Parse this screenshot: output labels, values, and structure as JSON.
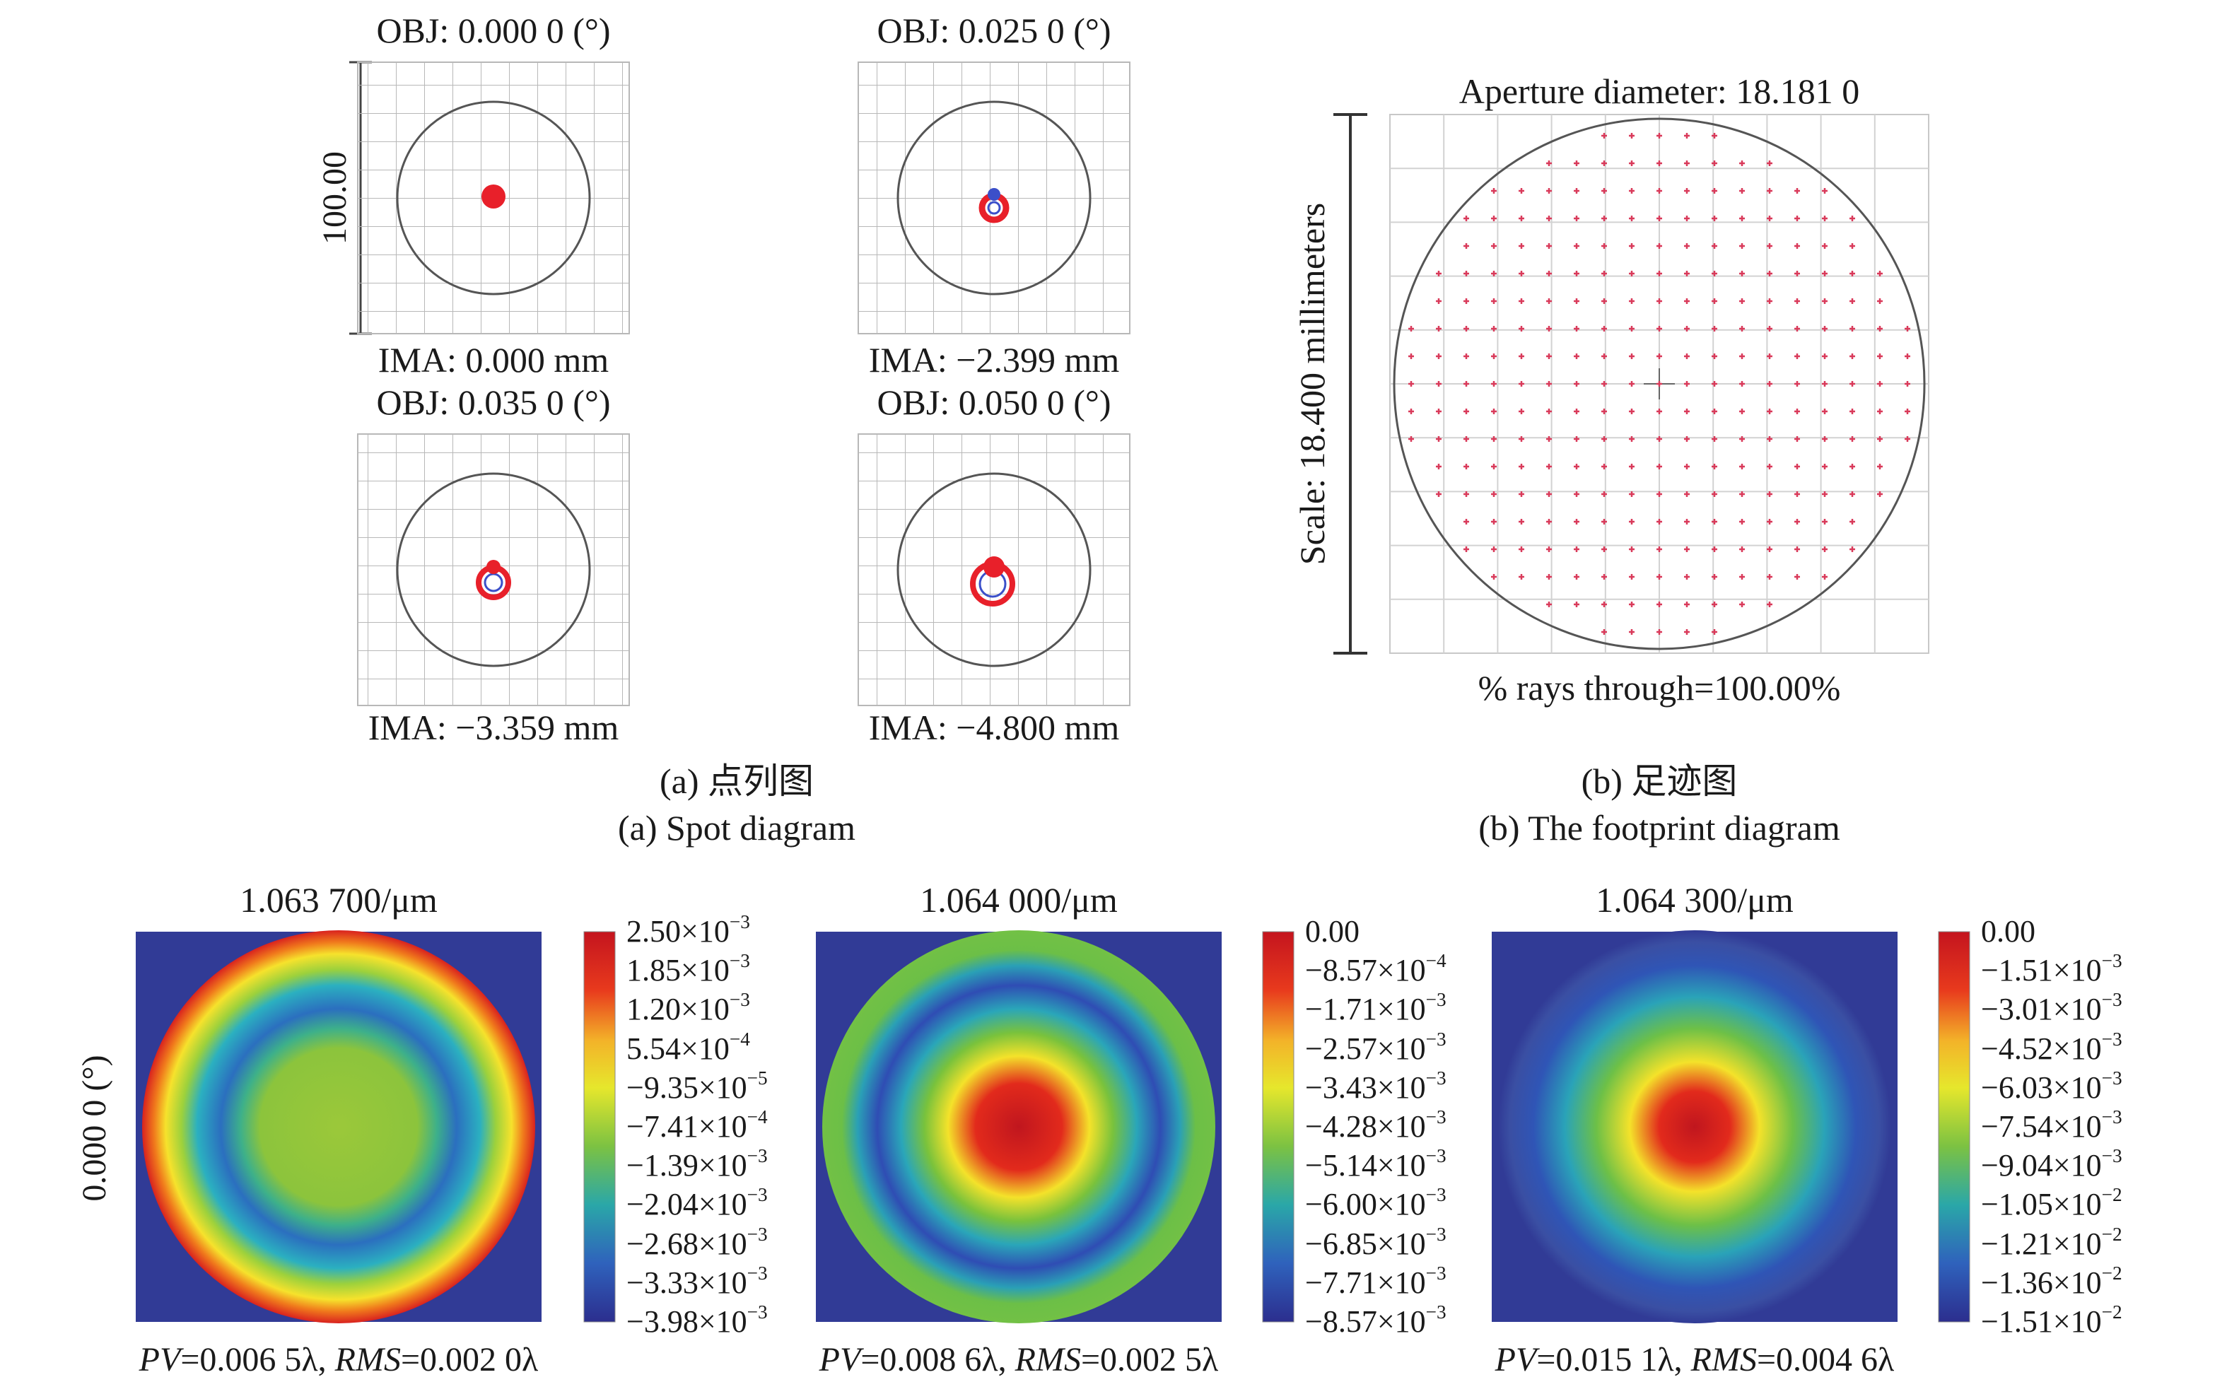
{
  "spot_diagram": {
    "scale_label": "100.00",
    "panels": [
      {
        "obj": "OBJ: 0.000 0 (°)",
        "ima": "IMA: 0.000 mm",
        "spot": "dot"
      },
      {
        "obj": "OBJ: 0.025 0 (°)",
        "ima": "IMA: −2.399 mm",
        "spot": "small-ring"
      },
      {
        "obj": "OBJ: 0.035 0 (°)",
        "ima": "IMA: −3.359 mm",
        "spot": "ring"
      },
      {
        "obj": "OBJ: 0.050 0 (°)",
        "ima": "IMA: −4.800 mm",
        "spot": "large-ring"
      }
    ],
    "caption_cn": "(a) 点列图",
    "caption_en": "(a) Spot diagram"
  },
  "footprint": {
    "title": "Aperture diameter: 18.181 0",
    "scale_label": "Scale: 18.400 millimeters",
    "rays_through": "% rays through=100.00%",
    "caption_cn": "(b) 足迹图",
    "caption_en": "(b) The footprint diagram"
  },
  "wavefront": {
    "field_label": "0.000 0 (°)",
    "maps": [
      {
        "wavelength": "1.063 700/μm",
        "pv_label": "PV",
        "pv_value": "=0.006 5λ, ",
        "rms_label": "RMS",
        "rms_value": "=0.002 0λ",
        "ticks": [
          [
            "2.50×10",
            "−3"
          ],
          [
            "1.85×10",
            "−3"
          ],
          [
            "1.20×10",
            "−3"
          ],
          [
            "5.54×10",
            "−4"
          ],
          [
            "−9.35×10",
            "−5"
          ],
          [
            "−7.41×10",
            "−4"
          ],
          [
            "−1.39×10",
            "−3"
          ],
          [
            "−2.04×10",
            "−3"
          ],
          [
            "−2.68×10",
            "−3"
          ],
          [
            "−3.33×10",
            "−3"
          ],
          [
            "−3.98×10",
            "−3"
          ]
        ]
      },
      {
        "wavelength": "1.064 000/μm",
        "pv_label": "PV",
        "pv_value": "=0.008 6λ, ",
        "rms_label": "RMS",
        "rms_value": "=0.002 5λ",
        "ticks": [
          [
            "0.00",
            ""
          ],
          [
            "−8.57×10",
            "−4"
          ],
          [
            "−1.71×10",
            "−3"
          ],
          [
            "−2.57×10",
            "−3"
          ],
          [
            "−3.43×10",
            "−3"
          ],
          [
            "−4.28×10",
            "−3"
          ],
          [
            "−5.14×10",
            "−3"
          ],
          [
            "−6.00×10",
            "−3"
          ],
          [
            "−6.85×10",
            "−3"
          ],
          [
            "−7.71×10",
            "−3"
          ],
          [
            "−8.57×10",
            "−3"
          ]
        ]
      },
      {
        "wavelength": "1.064 300/μm",
        "pv_label": "PV",
        "pv_value": "=0.015 1λ, ",
        "rms_label": "RMS",
        "rms_value": "=0.004 6λ",
        "ticks": [
          [
            "0.00",
            ""
          ],
          [
            "−1.51×10",
            "−3"
          ],
          [
            "−3.01×10",
            "−3"
          ],
          [
            "−4.52×10",
            "−3"
          ],
          [
            "−6.03×10",
            "−3"
          ],
          [
            "−7.54×10",
            "−3"
          ],
          [
            "−9.04×10",
            "−3"
          ],
          [
            "−1.05×10",
            "−2"
          ],
          [
            "−1.21×10",
            "−2"
          ],
          [
            "−1.36×10",
            "−2"
          ],
          [
            "−1.51×10",
            "−2"
          ]
        ]
      }
    ]
  },
  "colors": {
    "grid": "#b8b8b8",
    "circle": "#555555",
    "spot_red": "#e8202a",
    "spot_blue": "#3b4fc9",
    "footprint_ray": "#d93a5a",
    "map_background": "#313b96"
  }
}
